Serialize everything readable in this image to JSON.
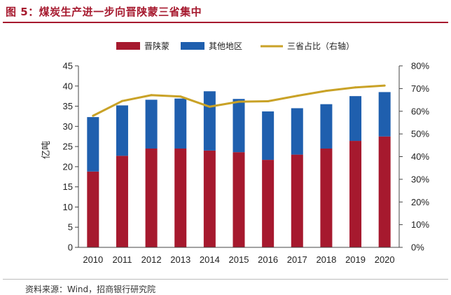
{
  "header": {
    "figure_title": "图 5：煤炭生产进一步向晋陕蒙三省集中"
  },
  "footer": {
    "source": "资料来源：Wind，招商银行研究院"
  },
  "colors": {
    "jinshaanmeng": "#a6192e",
    "other": "#1f5fae",
    "share_line": "#c9a227",
    "title": "#a6192e"
  },
  "chart_data": {
    "type": "bar",
    "stacked": true,
    "title": "",
    "categories": [
      "2010",
      "2011",
      "2012",
      "2013",
      "2014",
      "2015",
      "2016",
      "2017",
      "2018",
      "2019",
      "2020"
    ],
    "series": [
      {
        "name": "晋陕蒙",
        "axis": "left",
        "values": [
          18.8,
          22.7,
          24.5,
          24.5,
          24.0,
          23.6,
          21.7,
          23.0,
          24.5,
          26.4,
          27.5
        ]
      },
      {
        "name": "其他地区",
        "axis": "left",
        "values": [
          13.5,
          12.5,
          12.1,
          12.4,
          14.7,
          13.2,
          12.0,
          11.5,
          11.0,
          11.1,
          11.0
        ]
      },
      {
        "name": "三省占比（右轴）",
        "axis": "right",
        "type": "line",
        "values": [
          58.0,
          64.5,
          67.1,
          66.5,
          62.0,
          64.2,
          64.4,
          66.8,
          69.0,
          70.5,
          71.3
        ]
      }
    ],
    "ylabel": "亿吨",
    "ylim": [
      0,
      45
    ],
    "yticks": [
      "0",
      "5",
      "10",
      "15",
      "20",
      "25",
      "30",
      "35",
      "40",
      "45"
    ],
    "y2lim": [
      0,
      80
    ],
    "y2ticks": [
      "0%",
      "10%",
      "20%",
      "30%",
      "40%",
      "50%",
      "60%",
      "70%",
      "80%"
    ],
    "legend": [
      "晋陕蒙",
      "其他地区",
      "三省占比（右轴）"
    ],
    "legend_position": "top",
    "grid": false
  }
}
